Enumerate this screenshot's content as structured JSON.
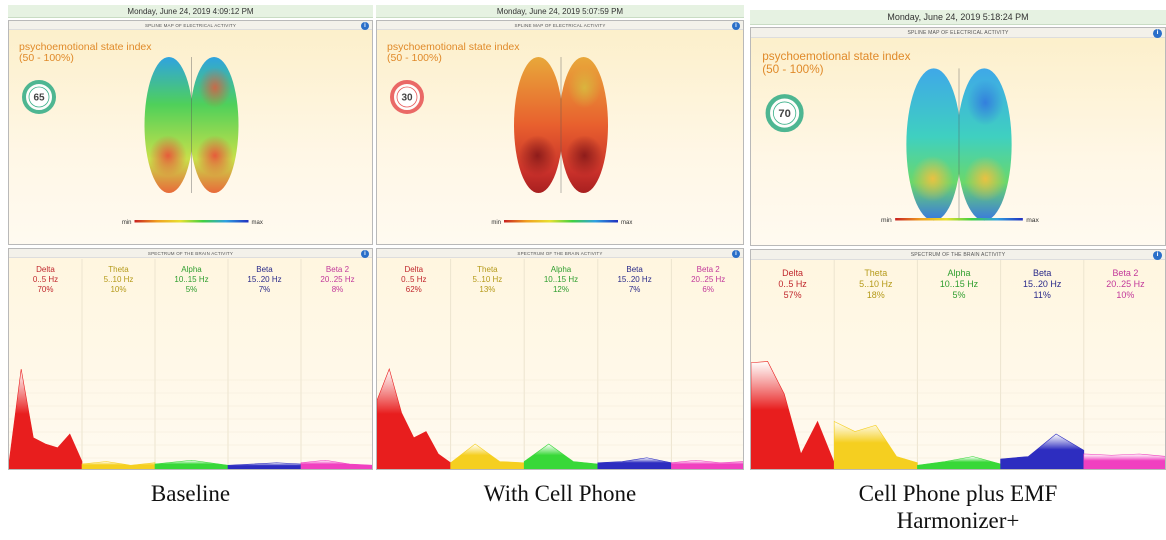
{
  "panels": [
    {
      "timestamp": "Monday, June 24, 2019 4:09:12 PM",
      "map_title": "SPLINE MAP OF ELECTRICAL ACTIVITY",
      "index_title": "psychoemotional state index",
      "index_range": "(50 - 100%)",
      "index_value": "65",
      "min": "min",
      "max": "max",
      "spectrum_title": "SPECTRUM OF THE BRAIN ACTIVITY",
      "bands": [
        {
          "name": "Delta",
          "range": "0..5 Hz",
          "percent": "70%"
        },
        {
          "name": "Theta",
          "range": "5..10 Hz",
          "percent": "10%"
        },
        {
          "name": "Alpha",
          "range": "10..15 Hz",
          "percent": "5%"
        },
        {
          "name": "Beta",
          "range": "15..20 Hz",
          "percent": "7%"
        },
        {
          "name": "Beta 2",
          "range": "20..25 Hz",
          "percent": "8%"
        }
      ],
      "caption": "Baseline"
    },
    {
      "timestamp": "Monday, June 24, 2019 5:07:59 PM",
      "map_title": "SPLINE MAP OF ELECTRICAL ACTIVITY",
      "index_title": "psychoemotional state index",
      "index_range": "(50 - 100%)",
      "index_value": "30",
      "min": "min",
      "max": "max",
      "spectrum_title": "SPECTRUM OF THE BRAIN ACTIVITY",
      "bands": [
        {
          "name": "Delta",
          "range": "0..5 Hz",
          "percent": "62%"
        },
        {
          "name": "Theta",
          "range": "5..10 Hz",
          "percent": "13%"
        },
        {
          "name": "Alpha",
          "range": "10..15 Hz",
          "percent": "12%"
        },
        {
          "name": "Beta",
          "range": "15..20 Hz",
          "percent": "7%"
        },
        {
          "name": "Beta 2",
          "range": "20..25 Hz",
          "percent": "6%"
        }
      ],
      "caption": "With Cell Phone"
    },
    {
      "timestamp": "Monday, June 24, 2019 5:18:24 PM",
      "map_title": "SPLINE MAP OF ELECTRICAL ACTIVITY",
      "index_title": "psychoemotional state index",
      "index_range": "(50 - 100%)",
      "index_value": "70",
      "min": "min",
      "max": "max",
      "spectrum_title": "SPECTRUM OF THE BRAIN ACTIVITY",
      "bands": [
        {
          "name": "Delta",
          "range": "0..5 Hz",
          "percent": "57%"
        },
        {
          "name": "Theta",
          "range": "5..10 Hz",
          "percent": "18%"
        },
        {
          "name": "Alpha",
          "range": "10..15 Hz",
          "percent": "5%"
        },
        {
          "name": "Beta",
          "range": "15..20 Hz",
          "percent": "11%"
        },
        {
          "name": "Beta 2",
          "range": "20..25 Hz",
          "percent": "10%"
        }
      ],
      "caption": "Cell Phone plus EMF Harmonizer+"
    }
  ]
}
